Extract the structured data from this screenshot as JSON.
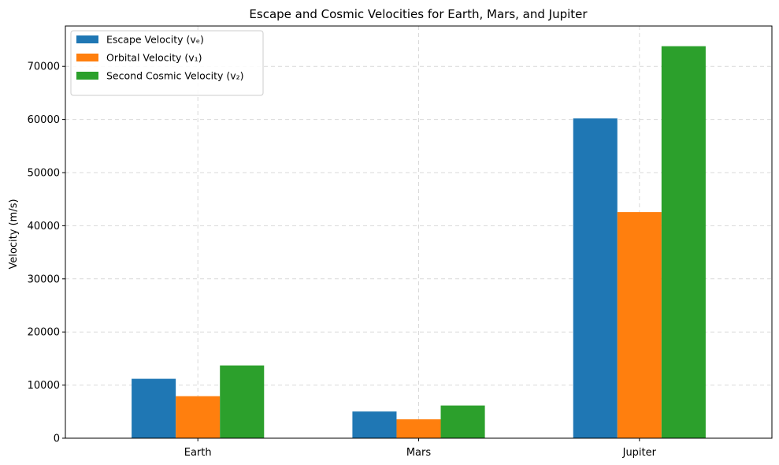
{
  "chart_data": {
    "type": "bar",
    "title": "Escape and Cosmic Velocities for Earth, Mars, and Jupiter",
    "xlabel": "",
    "ylabel": "Velocity (m/s)",
    "categories": [
      "Earth",
      "Mars",
      "Jupiter"
    ],
    "ylim": [
      0,
      77600
    ],
    "yticks": [
      0,
      10000,
      20000,
      30000,
      40000,
      50000,
      60000,
      70000
    ],
    "grid": true,
    "legend_position": "top-left",
    "series": [
      {
        "name": "Escape Velocity (vₑ)",
        "color": "#1f77b4",
        "values": [
          11186,
          5027,
          60200
        ]
      },
      {
        "name": "Orbital Velocity (v₁)",
        "color": "#ff7f0e",
        "values": [
          7910,
          3555,
          42570
        ]
      },
      {
        "name": "Second Cosmic Velocity (v₂)",
        "color": "#2ca02c",
        "values": [
          13700,
          6150,
          73800
        ]
      }
    ]
  }
}
